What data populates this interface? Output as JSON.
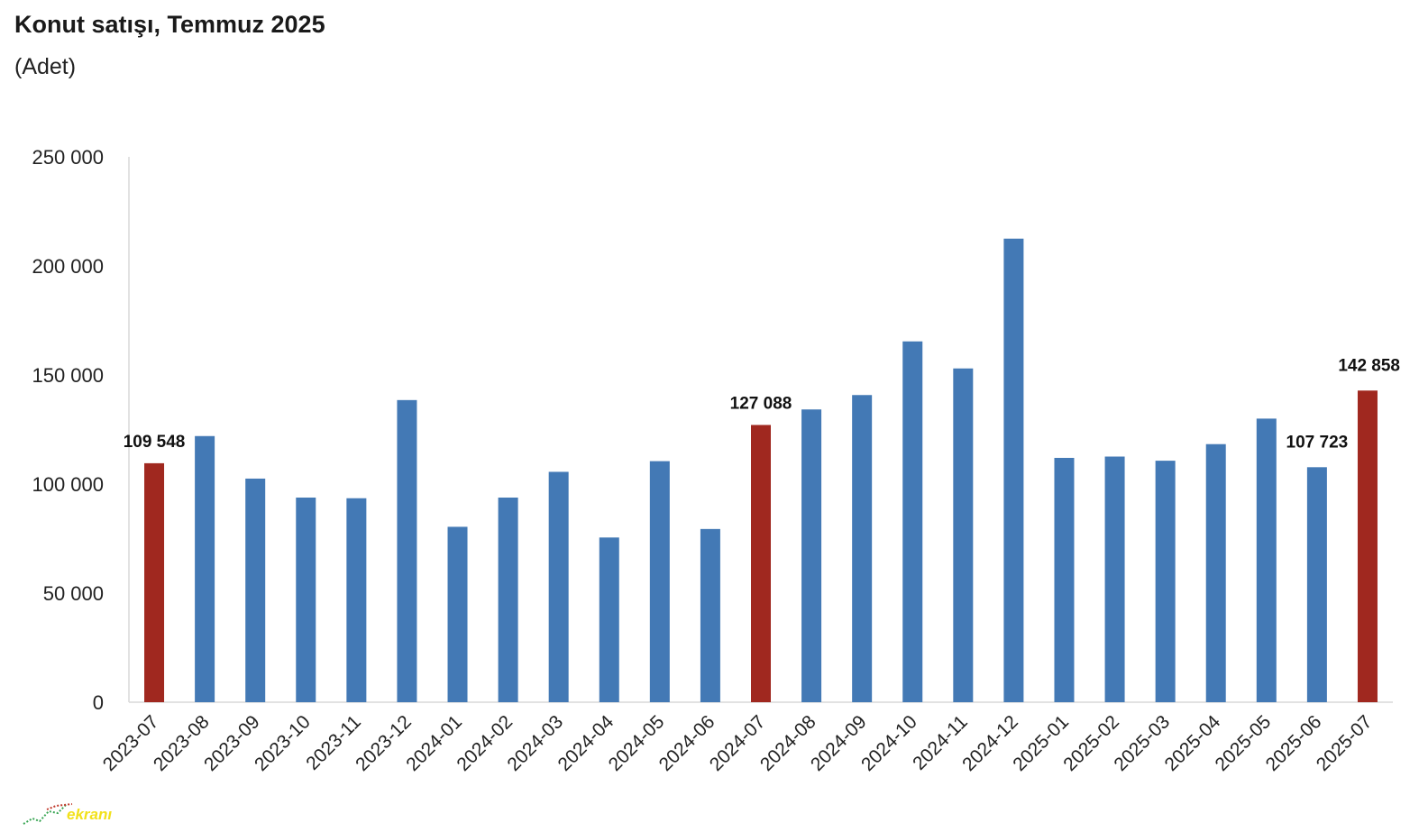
{
  "chart_data": {
    "type": "bar",
    "title": "Konut satışı, Temmuz 2025",
    "subtitle": "(Adet)",
    "xlabel": "",
    "ylabel": "",
    "ylim": [
      0,
      250000
    ],
    "yticks": [
      0,
      50000,
      100000,
      150000,
      200000,
      250000
    ],
    "ytick_labels": [
      "0",
      "50 000",
      "100 000",
      "150 000",
      "200 000",
      "250 000"
    ],
    "grid": false,
    "categories": [
      "2023-07",
      "2023-08",
      "2023-09",
      "2023-10",
      "2023-11",
      "2023-12",
      "2024-01",
      "2024-02",
      "2024-03",
      "2024-04",
      "2024-05",
      "2024-06",
      "2024-07",
      "2024-08",
      "2024-09",
      "2024-10",
      "2024-11",
      "2024-12",
      "2025-01",
      "2025-02",
      "2025-03",
      "2025-04",
      "2025-05",
      "2025-06",
      "2025-07"
    ],
    "values": [
      109548,
      122000,
      102500,
      93800,
      93500,
      138500,
      80400,
      93800,
      105600,
      75500,
      110500,
      79400,
      127088,
      134200,
      140800,
      165400,
      153000,
      212500,
      112000,
      112600,
      110700,
      118300,
      130000,
      107723,
      142858
    ],
    "highlighted": [
      true,
      false,
      false,
      false,
      false,
      false,
      false,
      false,
      false,
      false,
      false,
      false,
      true,
      false,
      false,
      false,
      false,
      false,
      false,
      false,
      false,
      false,
      false,
      false,
      true
    ],
    "data_labels": [
      {
        "category": "2023-07",
        "text": "109 548"
      },
      {
        "category": "2024-07",
        "text": "127 088"
      },
      {
        "category": "2025-06",
        "text": "107 723"
      },
      {
        "category": "2025-07",
        "text": "142 858"
      }
    ],
    "colors": {
      "default_bar": "#4379b5",
      "highlight_bar": "#a0281f",
      "axis": "#d9d9d9",
      "text": "#222222"
    }
  },
  "watermark": {
    "text": "ekranı",
    "color": "#f2e11b"
  }
}
